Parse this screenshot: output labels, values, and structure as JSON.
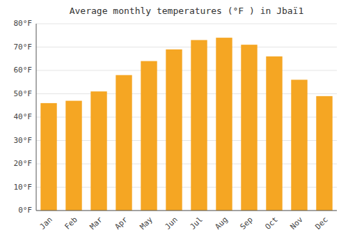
{
  "chart_data": {
    "type": "bar",
    "title": "Average monthly temperatures (°F ) in Jbaï1",
    "categories": [
      "Jan",
      "Feb",
      "Mar",
      "Apr",
      "May",
      "Jun",
      "Jul",
      "Aug",
      "Sep",
      "Oct",
      "Nov",
      "Dec"
    ],
    "values": [
      46,
      47,
      51,
      58,
      64,
      69,
      73,
      74,
      71,
      66,
      56,
      49
    ],
    "color": "#F5A623",
    "ylim": [
      0,
      80
    ],
    "yticks": [
      {
        "value": 0,
        "label": "0°F"
      },
      {
        "value": 10,
        "label": "10°F"
      },
      {
        "value": 20,
        "label": "20°F"
      },
      {
        "value": 30,
        "label": "30°F"
      },
      {
        "value": 40,
        "label": "40°F"
      },
      {
        "value": 50,
        "label": "50°F"
      },
      {
        "value": 60,
        "label": "60°F"
      },
      {
        "value": 70,
        "label": "70°F"
      },
      {
        "value": 80,
        "label": "80°F"
      }
    ],
    "grid": true
  }
}
